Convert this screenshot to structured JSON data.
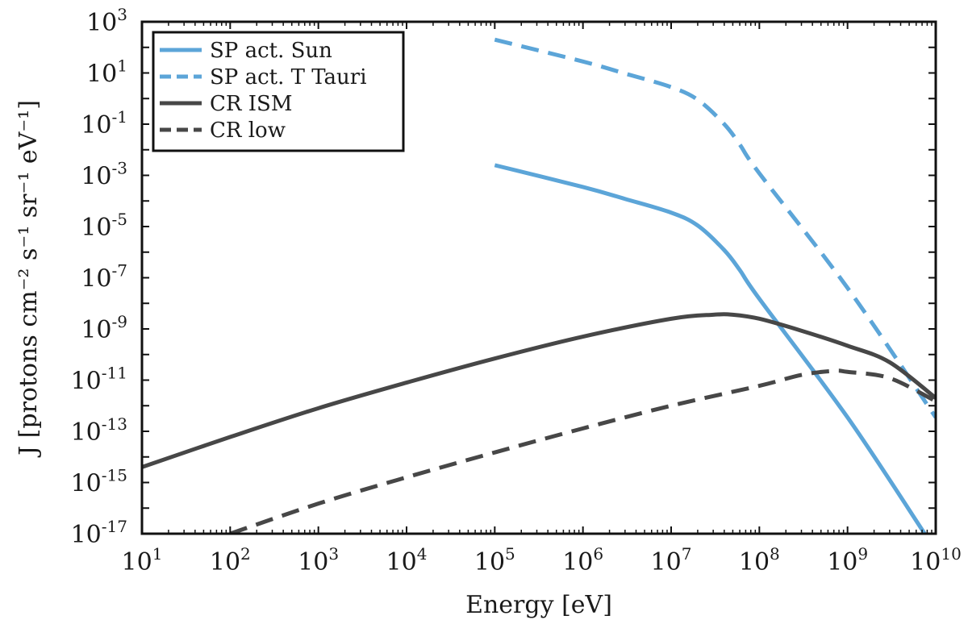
{
  "chart_data": {
    "type": "line",
    "xlabel": "Energy [eV]",
    "ylabel": "J [protons cm⁻² s⁻¹ sr⁻¹ eV⁻¹]",
    "xscale": "log",
    "yscale": "log",
    "xlim": [
      10,
      10000000000
    ],
    "ylim": [
      1e-17,
      1000
    ],
    "grid": false,
    "legend_position": "top-left",
    "x_ticks": [
      {
        "value": 10,
        "base": "10",
        "exp": "1"
      },
      {
        "value": 100,
        "base": "10",
        "exp": "2"
      },
      {
        "value": 1000,
        "base": "10",
        "exp": "3"
      },
      {
        "value": 10000,
        "base": "10",
        "exp": "4"
      },
      {
        "value": 100000,
        "base": "10",
        "exp": "5"
      },
      {
        "value": 1000000,
        "base": "10",
        "exp": "6"
      },
      {
        "value": 10000000,
        "base": "10",
        "exp": "7"
      },
      {
        "value": 100000000,
        "base": "10",
        "exp": "8"
      },
      {
        "value": 1000000000,
        "base": "10",
        "exp": "9"
      },
      {
        "value": 10000000000,
        "base": "10",
        "exp": "10"
      }
    ],
    "y_ticks": [
      {
        "value": 1000,
        "base": "10",
        "exp": "3"
      },
      {
        "value": 10,
        "base": "10",
        "exp": "1"
      },
      {
        "value": 0.1,
        "base": "10",
        "exp": "-1"
      },
      {
        "value": 0.001,
        "base": "10",
        "exp": "-3"
      },
      {
        "value": 1e-05,
        "base": "10",
        "exp": "-5"
      },
      {
        "value": 1e-07,
        "base": "10",
        "exp": "-7"
      },
      {
        "value": 1e-09,
        "base": "10",
        "exp": "-9"
      },
      {
        "value": 1e-11,
        "base": "10",
        "exp": "-11"
      },
      {
        "value": 1e-13,
        "base": "10",
        "exp": "-13"
      },
      {
        "value": 1e-15,
        "base": "10",
        "exp": "-15"
      },
      {
        "value": 1e-17,
        "base": "10",
        "exp": "-17"
      }
    ],
    "series": [
      {
        "name": "SP act. Sun",
        "color": "#5ca5d8",
        "dash": "solid",
        "x": [
          100000.0,
          1000000.0,
          3000000.0,
          10000000.0,
          20000000.0,
          40000000.0,
          60000000.0,
          100000000.0,
          1000000000.0,
          7500000000.0
        ],
        "y": [
          0.0025,
          0.00035,
          0.00012,
          3.5e-05,
          1.1e-05,
          1.2e-06,
          2e-07,
          1.5e-08,
          3.5e-13,
          1e-17
        ]
      },
      {
        "name": "SP act. T Tauri",
        "color": "#5ca5d8",
        "dash": "dashed",
        "x": [
          100000.0,
          1000000.0,
          3000000.0,
          10000000.0,
          20000000.0,
          40000000.0,
          60000000.0,
          100000000.0,
          1000000000.0,
          10000000000.0
        ],
        "y": [
          200,
          28,
          9.5,
          2.8,
          0.9,
          0.1,
          0.016,
          0.0012,
          4e-08,
          3.5e-13
        ]
      },
      {
        "name": "CR ISM",
        "color": "#474747",
        "dash": "solid",
        "x": [
          10,
          100,
          1000,
          10000.0,
          100000.0,
          1000000.0,
          10000000.0,
          30000000.0,
          50000000.0,
          100000000.0,
          300000000.0,
          1000000000.0,
          3000000000.0,
          10000000000.0
        ],
        "y": [
          4e-15,
          6e-14,
          8e-13,
          8e-12,
          7e-11,
          5e-10,
          2.5e-09,
          3.6e-09,
          3.6e-09,
          2.5e-09,
          8.5e-10,
          2.2e-10,
          5e-11,
          2e-12
        ]
      },
      {
        "name": "CR low",
        "color": "#474747",
        "dash": "dashed",
        "x": [
          100,
          1000,
          10000.0,
          100000.0,
          1000000.0,
          10000000.0,
          100000000.0,
          300000000.0,
          700000000.0,
          1000000000.0,
          3000000000.0,
          10000000000.0
        ],
        "y": [
          1e-17,
          1.5e-16,
          1.6e-15,
          1.5e-14,
          1.3e-13,
          1e-12,
          6e-12,
          1.6e-11,
          2.3e-11,
          2.1e-11,
          1.2e-11,
          1.5e-12
        ]
      }
    ]
  }
}
